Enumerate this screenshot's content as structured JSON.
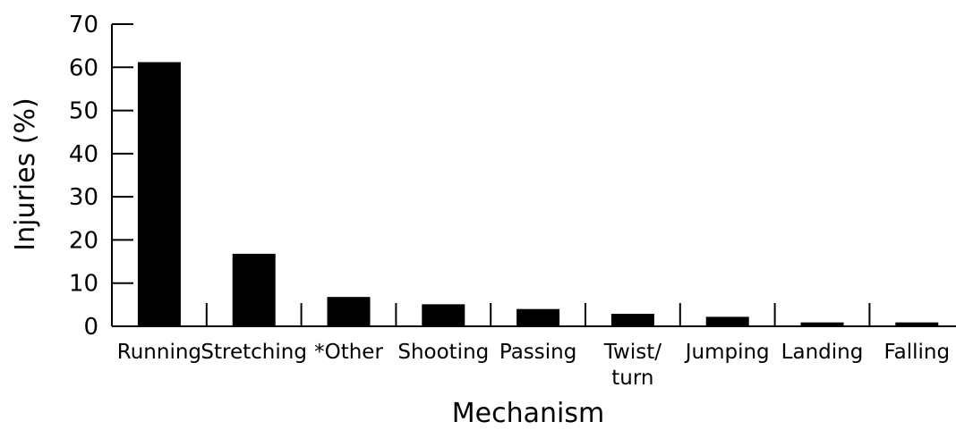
{
  "chart_data": {
    "type": "bar",
    "title": "",
    "xlabel": "Mechanism",
    "ylabel": "Injuries (%)",
    "ylim": [
      0,
      70
    ],
    "yticks": [
      0,
      10,
      20,
      30,
      40,
      50,
      60,
      70
    ],
    "grid": false,
    "bar_color": "#000000",
    "categories": [
      "Running",
      "Stretching",
      "*Other",
      "Shooting",
      "Passing",
      "Twist/ turn",
      "Jumping",
      "Landing",
      "Falling"
    ],
    "category_lines": [
      [
        "Running"
      ],
      [
        "Stretching"
      ],
      [
        "*Other"
      ],
      [
        "Shooting"
      ],
      [
        "Passing"
      ],
      [
        "Twist/",
        "turn"
      ],
      [
        "Jumping"
      ],
      [
        "Landing"
      ],
      [
        "Falling"
      ]
    ],
    "values": [
      61.2,
      16.8,
      6.8,
      5.1,
      4.0,
      2.9,
      2.2,
      0.9,
      0.9
    ]
  }
}
